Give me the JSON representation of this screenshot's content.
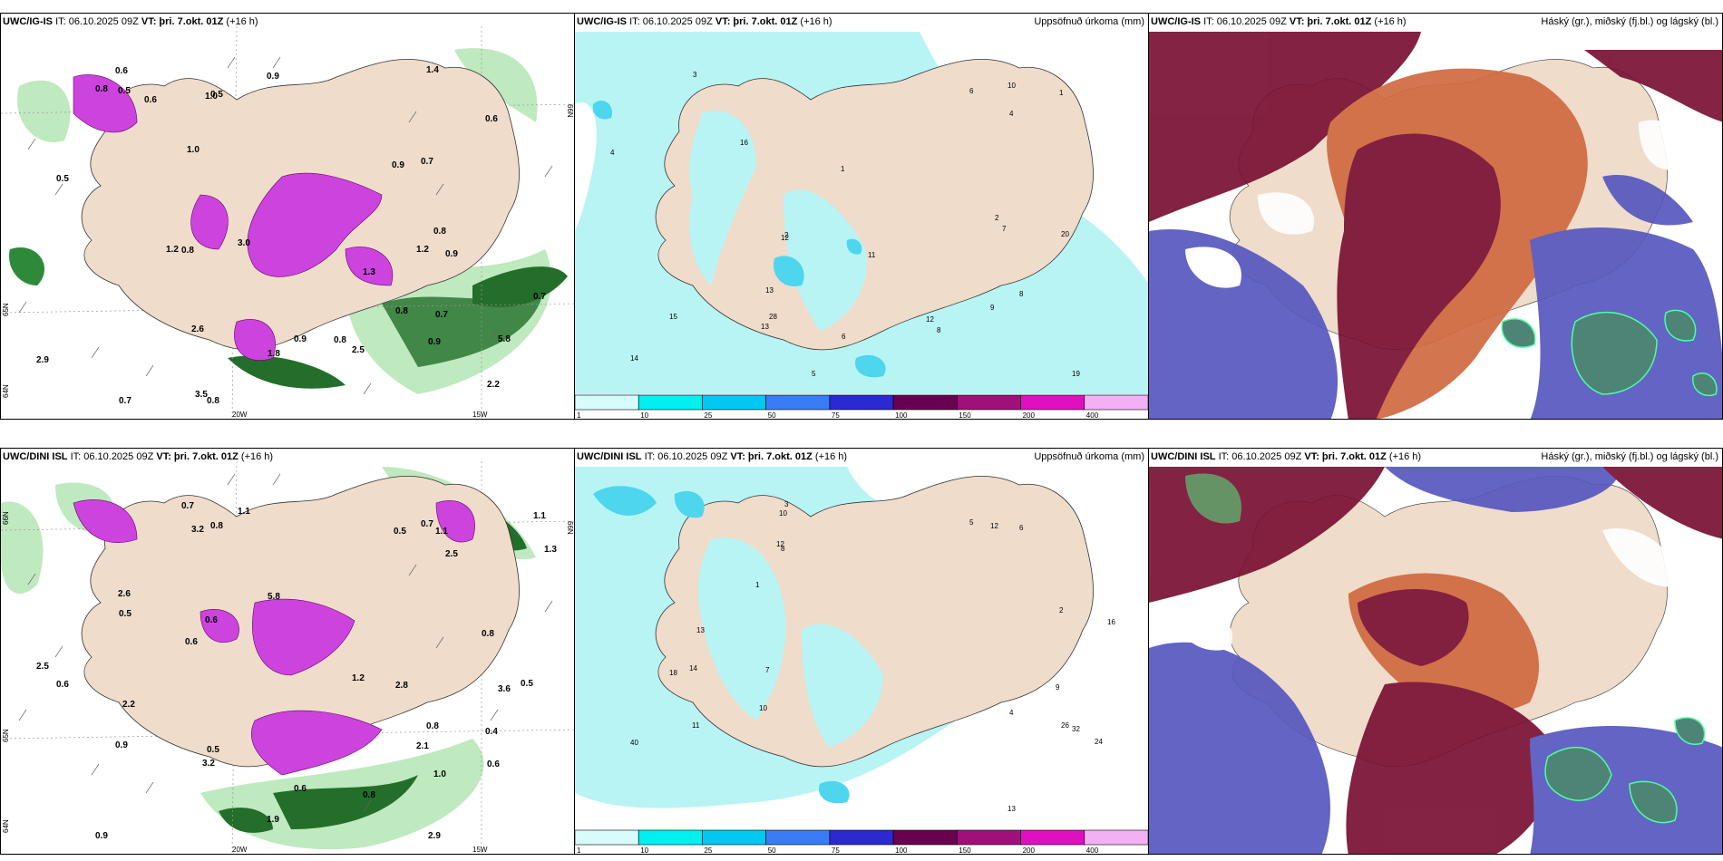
{
  "rows": [
    {
      "model": "UWC/IG-IS",
      "issue": "IT: 06.10.2025 09Z",
      "valid_label": "VT:",
      "valid": "þri. 7.okt. 01Z",
      "lead": "(+16 h)",
      "wind_labels": [
        "0.6",
        "0.8",
        "0.9",
        "1.4",
        "1.2",
        "3.5",
        "1.0",
        "0.9",
        "2.5",
        "1.3",
        "0.9",
        "1.8",
        "3.0",
        "2.9",
        "0.7",
        "0.7",
        "0.9",
        "0.8",
        "0.5",
        "0.8",
        "2.2",
        "5.8",
        "1.2",
        "0.8",
        "2.6",
        "0.9",
        "0.8",
        "0.7",
        "0.5",
        "0.6",
        "0.8",
        "1.0",
        "0.5",
        "0.7",
        "0.6"
      ],
      "axis_labels": [
        "20W",
        "15W",
        "66N",
        "65N",
        "64N"
      ],
      "precip_numbers": [
        "16",
        "28",
        "13",
        "11",
        "12",
        "8",
        "7",
        "6",
        "5",
        "4",
        "3",
        "2",
        "1",
        "10",
        "14",
        "15",
        "20",
        "19",
        "9",
        "12",
        "13",
        "8",
        "6",
        "4",
        "2",
        "1"
      ]
    },
    {
      "model": "UWC/DINI ISL",
      "issue": "IT: 06.10.2025 09Z",
      "valid_label": "VT:",
      "valid": "þri. 7.okt. 01Z",
      "lead": "(+16 h)",
      "wind_labels": [
        "0.6",
        "1.2",
        "0.8",
        "2.9",
        "5.8",
        "1.1",
        "2.5",
        "0.5",
        "0.7",
        "1.9",
        "1.0",
        "0.6",
        "0.9",
        "0.6",
        "3.6",
        "2.1",
        "0.5",
        "3.2",
        "2.5",
        "2.8",
        "1.1",
        "0.8",
        "0.4",
        "0.7",
        "0.6",
        "2.6",
        "1.1",
        "0.9",
        "0.8",
        "0.5",
        "2.2",
        "3.2",
        "0.6",
        "1.3",
        "0.8",
        "0.5"
      ],
      "axis_labels": [
        "20W",
        "15W",
        "66N",
        "65N",
        "64N"
      ],
      "precip_numbers": [
        "13",
        "40",
        "18",
        "26",
        "32",
        "12",
        "8",
        "7",
        "6",
        "5",
        "4",
        "3",
        "2",
        "1",
        "10",
        "11",
        "16",
        "14",
        "9",
        "24",
        "13",
        "12",
        "10"
      ]
    }
  ],
  "precip_title": "Uppsöfnuð úrkoma (mm)",
  "cloud_title": "Háský (gr.), miðský (fj.bl.) og lágský (bl.)",
  "colorbar": {
    "ticks": [
      "1",
      "10",
      "25",
      "50",
      "75",
      "100",
      "150",
      "200",
      "400"
    ],
    "colors": [
      "#d8fbfb",
      "#00f0f0",
      "#00c8f0",
      "#3a7cf5",
      "#2a2ad0",
      "#6a0050",
      "#a0107a",
      "#e010c0",
      "#f4b0f4"
    ]
  },
  "colors": {
    "land": "#efdccb",
    "precip_light": "#b8f4f4",
    "precip_mid": "#4dd6ee",
    "cloud_high": "#7a1034",
    "cloud_mid": "#5757c0",
    "cloud_low": "#3f7a6a",
    "cloud_orange": "#d06a40",
    "icing_magenta": "#cc44dd",
    "wind_green_light": "#bfe9bf",
    "wind_green_dark": "#226e2a"
  }
}
